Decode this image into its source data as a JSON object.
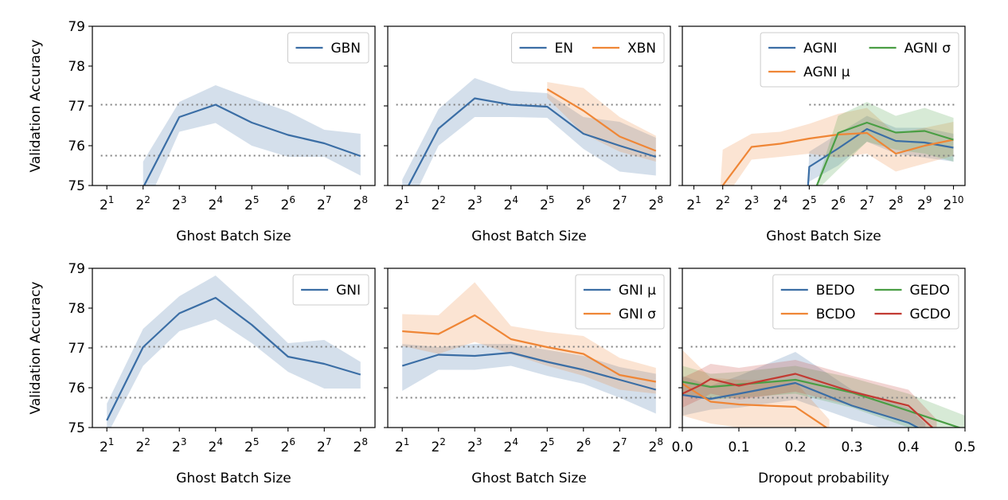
{
  "figure": {
    "ylabel": "Validation Accuracy",
    "colors": {
      "blue": "#3b6ea5",
      "orange": "#ef8636",
      "green": "#4a9e44",
      "red": "#c23b33",
      "ref": "#808080"
    },
    "reference_lines": [
      77.03,
      75.75
    ]
  },
  "chart_data": [
    {
      "type": "line",
      "xlabel": "Ghost Batch Size",
      "ylabel": "Validation Accuracy",
      "ylim": [
        75,
        79
      ],
      "xlim": [
        0.6,
        8.4
      ],
      "x_ticks": [
        1,
        2,
        3,
        4,
        5,
        6,
        7,
        8
      ],
      "x_tick_labels": [
        {
          "b": "2",
          "e": "1"
        },
        {
          "b": "2",
          "e": "2"
        },
        {
          "b": "2",
          "e": "3"
        },
        {
          "b": "2",
          "e": "4"
        },
        {
          "b": "2",
          "e": "5"
        },
        {
          "b": "2",
          "e": "6"
        },
        {
          "b": "2",
          "e": "7"
        },
        {
          "b": "2",
          "e": "8"
        }
      ],
      "y_tick_labels": [
        "75",
        "76",
        "77",
        "78",
        "79"
      ],
      "legend_position": "upper right",
      "legend_cols": 1,
      "series": [
        {
          "name": "GBN",
          "color": "blue",
          "x": [
            2,
            3,
            4,
            5,
            6,
            7,
            8
          ],
          "y": [
            74.95,
            76.72,
            77.03,
            76.58,
            76.27,
            76.06,
            75.74
          ],
          "lower": [
            74.3,
            76.35,
            76.57,
            76.0,
            75.72,
            75.72,
            75.25
          ],
          "upper": [
            75.6,
            77.1,
            77.52,
            77.18,
            76.86,
            76.4,
            76.3
          ]
        }
      ]
    },
    {
      "type": "line",
      "xlabel": "Ghost Batch Size",
      "ylabel": "",
      "ylim": [
        75,
        79
      ],
      "xlim": [
        0.6,
        8.4
      ],
      "x_ticks": [
        1,
        2,
        3,
        4,
        5,
        6,
        7,
        8
      ],
      "x_tick_labels": [
        {
          "b": "2",
          "e": "1"
        },
        {
          "b": "2",
          "e": "2"
        },
        {
          "b": "2",
          "e": "3"
        },
        {
          "b": "2",
          "e": "4"
        },
        {
          "b": "2",
          "e": "5"
        },
        {
          "b": "2",
          "e": "6"
        },
        {
          "b": "2",
          "e": "7"
        },
        {
          "b": "2",
          "e": "8"
        }
      ],
      "y_tick_labels": [],
      "legend_position": "upper right",
      "legend_cols": 2,
      "series": [
        {
          "name": "EN",
          "color": "blue",
          "x": [
            1,
            2,
            3,
            4,
            5,
            6,
            7,
            8
          ],
          "y": [
            74.7,
            76.43,
            77.19,
            77.03,
            76.98,
            76.3,
            76.0,
            75.72
          ],
          "lower": [
            74.1,
            76.0,
            76.72,
            76.72,
            76.7,
            75.92,
            75.35,
            75.25
          ],
          "upper": [
            75.15,
            76.92,
            77.7,
            77.38,
            77.32,
            76.72,
            76.6,
            76.2
          ]
        },
        {
          "name": "XBN",
          "color": "orange",
          "x": [
            5,
            6,
            7,
            8
          ],
          "y": [
            77.42,
            76.88,
            76.23,
            75.87
          ],
          "lower": [
            77.2,
            76.3,
            75.85,
            75.6
          ],
          "upper": [
            77.6,
            77.45,
            76.72,
            76.25
          ]
        }
      ]
    },
    {
      "type": "line",
      "xlabel": "Ghost Batch Size",
      "ylabel": "",
      "ylim": [
        75,
        79
      ],
      "xlim": [
        0.6,
        10.4
      ],
      "x_ticks": [
        1,
        2,
        3,
        4,
        5,
        6,
        7,
        8,
        9,
        10
      ],
      "x_tick_labels": [
        {
          "b": "2",
          "e": "1"
        },
        {
          "b": "2",
          "e": "2"
        },
        {
          "b": "2",
          "e": "3"
        },
        {
          "b": "2",
          "e": "4"
        },
        {
          "b": "2",
          "e": "5"
        },
        {
          "b": "2",
          "e": "6"
        },
        {
          "b": "2",
          "e": "7"
        },
        {
          "b": "2",
          "e": "8"
        },
        {
          "b": "2",
          "e": "9"
        },
        {
          "b": "2",
          "e": "10"
        }
      ],
      "y_tick_labels": [],
      "legend_position": "upper right",
      "legend_cols": 2,
      "series": [
        {
          "name": "AGNI",
          "color": "blue",
          "x": [
            4.94,
            5,
            6,
            7,
            8,
            9,
            10
          ],
          "y": [
            74.8,
            75.47,
            75.93,
            76.42,
            76.12,
            76.08,
            75.95
          ],
          "lower": [
            74.8,
            75.1,
            75.5,
            76.1,
            75.8,
            75.7,
            75.6
          ],
          "upper": [
            74.8,
            75.85,
            76.3,
            76.75,
            76.45,
            76.45,
            76.3
          ]
        },
        {
          "name": "AGNI μ",
          "color": "orange",
          "x": [
            1.9,
            2,
            3,
            4,
            5,
            6,
            7,
            8,
            9,
            10
          ],
          "y": [
            74.8,
            75.0,
            75.97,
            76.05,
            76.18,
            76.28,
            76.32,
            75.8,
            76.0,
            76.15
          ],
          "lower": [
            74.8,
            74.6,
            75.65,
            75.72,
            75.8,
            75.7,
            75.8,
            75.35,
            75.55,
            75.75
          ],
          "upper": [
            74.8,
            75.9,
            76.3,
            76.35,
            76.55,
            76.8,
            76.95,
            76.3,
            76.45,
            76.6
          ]
        },
        {
          "name": "AGNI σ",
          "color": "green",
          "x": [
            5.15,
            6,
            7,
            8,
            9,
            10
          ],
          "y": [
            74.8,
            76.32,
            76.58,
            76.33,
            76.37,
            76.15
          ],
          "lower": [
            74.8,
            75.4,
            76.1,
            75.9,
            75.8,
            75.6
          ],
          "upper": [
            74.8,
            76.75,
            77.1,
            76.75,
            76.95,
            76.7
          ]
        }
      ]
    },
    {
      "type": "line",
      "xlabel": "Ghost Batch Size",
      "ylabel": "Validation Accuracy",
      "ylim": [
        75,
        79
      ],
      "xlim": [
        0.6,
        8.4
      ],
      "x_ticks": [
        1,
        2,
        3,
        4,
        5,
        6,
        7,
        8
      ],
      "x_tick_labels": [
        {
          "b": "2",
          "e": "1"
        },
        {
          "b": "2",
          "e": "2"
        },
        {
          "b": "2",
          "e": "3"
        },
        {
          "b": "2",
          "e": "4"
        },
        {
          "b": "2",
          "e": "5"
        },
        {
          "b": "2",
          "e": "6"
        },
        {
          "b": "2",
          "e": "7"
        },
        {
          "b": "2",
          "e": "8"
        }
      ],
      "y_tick_labels": [
        "75",
        "76",
        "77",
        "78",
        "79"
      ],
      "legend_position": "upper right",
      "legend_cols": 1,
      "series": [
        {
          "name": "GNI",
          "color": "blue",
          "x": [
            1,
            2,
            3,
            4,
            5,
            6,
            7,
            8
          ],
          "y": [
            75.18,
            77.02,
            77.87,
            78.26,
            77.58,
            76.78,
            76.6,
            76.33
          ],
          "lower": [
            74.8,
            76.55,
            77.42,
            77.72,
            77.12,
            76.4,
            75.98,
            75.98
          ],
          "upper": [
            75.6,
            77.48,
            78.3,
            78.82,
            78.0,
            77.12,
            77.2,
            76.65
          ]
        }
      ]
    },
    {
      "type": "line",
      "xlabel": "Ghost Batch Size",
      "ylabel": "",
      "ylim": [
        75,
        79
      ],
      "xlim": [
        0.6,
        8.4
      ],
      "x_ticks": [
        1,
        2,
        3,
        4,
        5,
        6,
        7,
        8
      ],
      "x_tick_labels": [
        {
          "b": "2",
          "e": "1"
        },
        {
          "b": "2",
          "e": "2"
        },
        {
          "b": "2",
          "e": "3"
        },
        {
          "b": "2",
          "e": "4"
        },
        {
          "b": "2",
          "e": "5"
        },
        {
          "b": "2",
          "e": "6"
        },
        {
          "b": "2",
          "e": "7"
        },
        {
          "b": "2",
          "e": "8"
        }
      ],
      "y_tick_labels": [],
      "legend_position": "upper right",
      "legend_cols": 1,
      "series": [
        {
          "name": "GNI μ",
          "color": "blue",
          "x": [
            1,
            2,
            3,
            4,
            5,
            6,
            7,
            8
          ],
          "y": [
            76.55,
            76.83,
            76.8,
            76.88,
            76.65,
            76.45,
            76.2,
            75.95
          ],
          "lower": [
            75.92,
            76.45,
            76.45,
            76.55,
            76.3,
            76.1,
            75.75,
            75.35
          ],
          "upper": [
            77.1,
            77.02,
            77.1,
            77.1,
            76.95,
            76.8,
            76.52,
            76.35
          ]
        },
        {
          "name": "GNI σ",
          "color": "orange",
          "x": [
            1,
            2,
            3,
            4,
            5,
            6,
            7,
            8
          ],
          "y": [
            77.42,
            77.35,
            77.82,
            77.22,
            77.02,
            76.85,
            76.32,
            76.15
          ],
          "lower": [
            77.05,
            76.85,
            77.15,
            76.85,
            76.55,
            76.3,
            75.95,
            75.85
          ],
          "upper": [
            77.85,
            77.82,
            78.65,
            77.55,
            77.4,
            77.3,
            76.75,
            76.5
          ]
        }
      ]
    },
    {
      "type": "line",
      "xlabel": "Dropout probability",
      "ylabel": "",
      "ylim": [
        75,
        79
      ],
      "xlim": [
        0,
        0.5
      ],
      "x_ticks": [
        0,
        0.1,
        0.2,
        0.3,
        0.4,
        0.5
      ],
      "x_tick_labels": [
        {
          "b": "0.0",
          "e": ""
        },
        {
          "b": "0.1",
          "e": ""
        },
        {
          "b": "0.2",
          "e": ""
        },
        {
          "b": "0.3",
          "e": ""
        },
        {
          "b": "0.4",
          "e": ""
        },
        {
          "b": "0.5",
          "e": ""
        }
      ],
      "y_tick_labels": [],
      "legend_position": "upper right",
      "legend_cols": 2,
      "series": [
        {
          "name": "BEDO",
          "color": "blue",
          "x": [
            0,
            0.05,
            0.1,
            0.2,
            0.3,
            0.4,
            0.43
          ],
          "y": [
            75.82,
            75.72,
            75.85,
            76.12,
            75.55,
            75.12,
            74.9
          ],
          "lower": [
            75.3,
            75.45,
            75.5,
            75.7,
            75.2,
            74.8,
            74.8
          ],
          "upper": [
            76.3,
            76.05,
            76.3,
            76.9,
            75.95,
            75.5,
            75.1
          ]
        },
        {
          "name": "BCDO",
          "color": "orange",
          "x": [
            0,
            0.05,
            0.1,
            0.2,
            0.26
          ],
          "y": [
            76.1,
            75.65,
            75.58,
            75.52,
            74.95
          ],
          "lower": [
            75.3,
            75.1,
            75.0,
            74.9,
            74.8
          ],
          "upper": [
            76.95,
            76.25,
            76.2,
            76.15,
            75.2
          ]
        },
        {
          "name": "GEDO",
          "color": "green",
          "x": [
            0,
            0.05,
            0.1,
            0.2,
            0.3,
            0.4,
            0.5
          ],
          "y": [
            76.15,
            76.02,
            76.08,
            76.2,
            75.88,
            75.42,
            74.95
          ],
          "lower": [
            75.8,
            75.7,
            75.75,
            75.85,
            75.5,
            75.0,
            74.8
          ],
          "upper": [
            76.55,
            76.35,
            76.4,
            76.55,
            76.25,
            75.85,
            75.3
          ]
        },
        {
          "name": "GCDO",
          "color": "red",
          "x": [
            0,
            0.03,
            0.05,
            0.1,
            0.2,
            0.3,
            0.4,
            0.45
          ],
          "y": [
            75.85,
            76.05,
            76.22,
            76.05,
            76.35,
            75.9,
            75.55,
            74.9
          ],
          "lower": [
            75.5,
            75.7,
            75.85,
            75.7,
            75.9,
            75.55,
            75.15,
            74.8
          ],
          "upper": [
            76.25,
            76.45,
            76.6,
            76.5,
            76.7,
            76.3,
            75.95,
            75.2
          ]
        }
      ]
    }
  ]
}
